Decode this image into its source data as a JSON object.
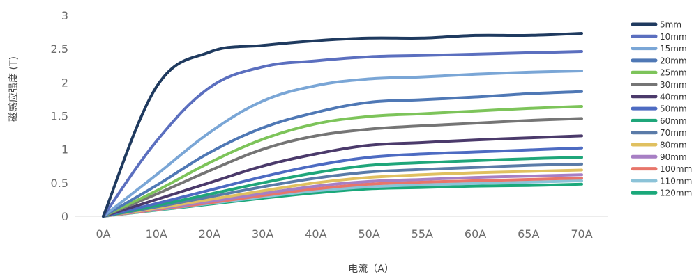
{
  "chart_data": {
    "type": "line",
    "title": "",
    "xlabel": "电流（A）",
    "ylabel": "磁感应强度 (T)",
    "categories": [
      "0A",
      "10A",
      "20A",
      "30A",
      "40A",
      "50A",
      "55A",
      "60A",
      "65A",
      "70A"
    ],
    "y_ticks": [
      "0",
      "0.5",
      "1",
      "1.5",
      "2",
      "2.5",
      "3"
    ],
    "ylim": [
      0,
      3
    ],
    "grid": false,
    "legend_position": "right",
    "series": [
      {
        "name": "5mm",
        "color": "#1f3a5f",
        "values": [
          0,
          1.93,
          2.45,
          2.55,
          2.62,
          2.66,
          2.66,
          2.7,
          2.7,
          2.73
        ]
      },
      {
        "name": "10mm",
        "color": "#5b6fbf",
        "values": [
          0,
          1.12,
          1.92,
          2.23,
          2.32,
          2.38,
          2.4,
          2.42,
          2.44,
          2.46
        ]
      },
      {
        "name": "15mm",
        "color": "#7aa6d6",
        "values": [
          0,
          0.62,
          1.25,
          1.72,
          1.95,
          2.05,
          2.08,
          2.12,
          2.15,
          2.17
        ]
      },
      {
        "name": "20mm",
        "color": "#4f78b5",
        "values": [
          0,
          0.46,
          0.95,
          1.32,
          1.55,
          1.7,
          1.74,
          1.78,
          1.83,
          1.86
        ]
      },
      {
        "name": "25mm",
        "color": "#7dc45a",
        "values": [
          0,
          0.38,
          0.8,
          1.15,
          1.38,
          1.49,
          1.53,
          1.57,
          1.61,
          1.64
        ]
      },
      {
        "name": "30mm",
        "color": "#757575",
        "values": [
          0,
          0.33,
          0.68,
          1.0,
          1.2,
          1.3,
          1.35,
          1.39,
          1.43,
          1.46
        ]
      },
      {
        "name": "40mm",
        "color": "#4b3a6b",
        "values": [
          0,
          0.25,
          0.5,
          0.75,
          0.93,
          1.06,
          1.1,
          1.14,
          1.17,
          1.2
        ]
      },
      {
        "name": "50mm",
        "color": "#4d6bc2",
        "values": [
          0,
          0.19,
          0.39,
          0.59,
          0.76,
          0.88,
          0.93,
          0.96,
          0.99,
          1.02
        ]
      },
      {
        "name": "60mm",
        "color": "#1fa67a",
        "values": [
          0,
          0.16,
          0.33,
          0.5,
          0.65,
          0.76,
          0.8,
          0.83,
          0.86,
          0.88
        ]
      },
      {
        "name": "70mm",
        "color": "#5a7ba8",
        "values": [
          0,
          0.14,
          0.29,
          0.44,
          0.57,
          0.66,
          0.7,
          0.73,
          0.76,
          0.78
        ]
      },
      {
        "name": "80mm",
        "color": "#e0c060",
        "values": [
          0,
          0.12,
          0.25,
          0.38,
          0.5,
          0.58,
          0.62,
          0.65,
          0.67,
          0.69
        ]
      },
      {
        "name": "90mm",
        "color": "#a77fc4",
        "values": [
          0,
          0.11,
          0.22,
          0.34,
          0.45,
          0.52,
          0.55,
          0.58,
          0.6,
          0.62
        ]
      },
      {
        "name": "100mm",
        "color": "#e8756a",
        "values": [
          0,
          0.1,
          0.2,
          0.31,
          0.41,
          0.48,
          0.51,
          0.53,
          0.55,
          0.57
        ]
      },
      {
        "name": "110mm",
        "color": "#8cc3d8",
        "values": [
          0,
          0.095,
          0.19,
          0.29,
          0.38,
          0.44,
          0.47,
          0.49,
          0.51,
          0.53
        ]
      },
      {
        "name": "120mm",
        "color": "#1aa87a",
        "values": [
          0,
          0.09,
          0.18,
          0.27,
          0.35,
          0.41,
          0.43,
          0.45,
          0.46,
          0.48
        ]
      }
    ]
  }
}
